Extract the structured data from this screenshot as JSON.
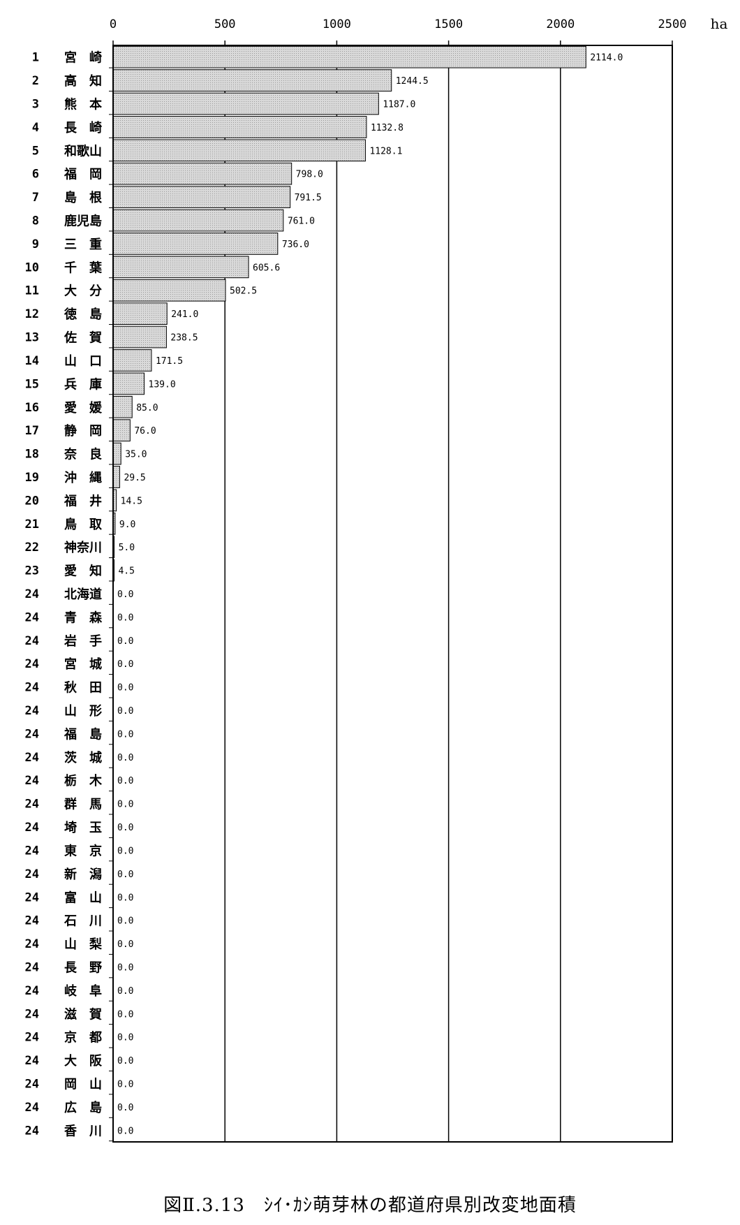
{
  "caption": "図Ⅱ.3.13　ｼｲ･ｶｼ萌芽林の都道府県別改変地面積",
  "chart_data": {
    "type": "bar",
    "orientation": "horizontal",
    "title": "",
    "xlabel": "",
    "ylabel": "",
    "unit": "ha",
    "xlim": [
      0,
      2500
    ],
    "xticks": [
      0,
      500,
      1000,
      1500,
      2000,
      2500
    ],
    "grid": "vertical lines at 1000, 1500, 2000",
    "bar_color": "#d9d9d9",
    "ranks": [
      1,
      2,
      3,
      4,
      5,
      6,
      7,
      8,
      9,
      10,
      11,
      12,
      13,
      14,
      15,
      16,
      17,
      18,
      19,
      20,
      21,
      22,
      23,
      24,
      24,
      24,
      24,
      24,
      24,
      24,
      24,
      24,
      24,
      24,
      24,
      24,
      24,
      24,
      24,
      24,
      24,
      24,
      24,
      24,
      24,
      24,
      24
    ],
    "categories": [
      "宮　崎",
      "高　知",
      "熊　本",
      "長　崎",
      "和歌山",
      "福　岡",
      "島　根",
      "鹿児島",
      "三　重",
      "千　葉",
      "大　分",
      "徳　島",
      "佐　賀",
      "山　口",
      "兵　庫",
      "愛　媛",
      "静　岡",
      "奈　良",
      "沖　縄",
      "福　井",
      "鳥　取",
      "神奈川",
      "愛　知",
      "北海道",
      "青　森",
      "岩　手",
      "宮　城",
      "秋　田",
      "山　形",
      "福　島",
      "茨　城",
      "栃　木",
      "群　馬",
      "埼　玉",
      "東　京",
      "新　潟",
      "富　山",
      "石　川",
      "山　梨",
      "長　野",
      "岐　阜",
      "滋　賀",
      "京　都",
      "大　阪",
      "岡　山",
      "広　島",
      "香　川"
    ],
    "values": [
      2114.0,
      1244.5,
      1187.0,
      1132.8,
      1128.1,
      798.0,
      791.5,
      761.0,
      736.0,
      605.6,
      502.5,
      241.0,
      238.5,
      171.5,
      139.0,
      85.0,
      76.0,
      35.0,
      29.5,
      14.5,
      9.0,
      5.0,
      4.5,
      0,
      0,
      0,
      0,
      0,
      0,
      0,
      0,
      0,
      0,
      0,
      0,
      0,
      0,
      0,
      0,
      0,
      0,
      0,
      0,
      0,
      0,
      0,
      0
    ],
    "value_labels": [
      "2114.0",
      "1244.5",
      "1187.0",
      "1132.8",
      "1128.1",
      "798.0",
      "791.5",
      "761.0",
      "736.0",
      "605.6",
      "502.5",
      "241.0",
      "238.5",
      "171.5",
      "139.0",
      "85.0",
      "76.0",
      "35.0",
      "29.5",
      "14.5",
      "9.0",
      "5.0",
      "4.5",
      "0.0",
      "0.0",
      "0.0",
      "0.0",
      "0.0",
      "0.0",
      "0.0",
      "0.0",
      "0.0",
      "0.0",
      "0.0",
      "0.0",
      "0.0",
      "0.0",
      "0.0",
      "0.0",
      "0.0",
      "0.0",
      "0.0",
      "0.0",
      "0.0",
      "0.0",
      "0.0",
      "0.0"
    ]
  }
}
